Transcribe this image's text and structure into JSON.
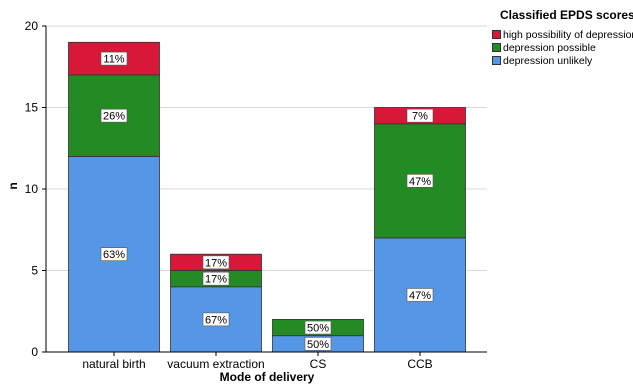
{
  "chart_data": {
    "type": "bar",
    "stacked": true,
    "xlabel": "Mode of delivery",
    "ylabel": "n",
    "ylim": [
      0,
      20
    ],
    "yticks": [
      0,
      5,
      10,
      15,
      20
    ],
    "grid": true,
    "legend_position": "right",
    "legend_title": "Classified EPDS scores",
    "categories": [
      "natural birth",
      "vacuum extraction",
      "CS",
      "CCB"
    ],
    "series": [
      {
        "name": "depression unlikely",
        "color": "#5596e6",
        "values": [
          12,
          4,
          1,
          7
        ],
        "labels": [
          "63%",
          "67%",
          "50%",
          "47%"
        ]
      },
      {
        "name": "depression possible",
        "color": "#248a24",
        "values": [
          5,
          1,
          1,
          7
        ],
        "labels": [
          "26%",
          "17%",
          "50%",
          "47%"
        ]
      },
      {
        "name": "high possibility of depression",
        "color": "#d81839",
        "values": [
          2,
          1,
          0,
          1
        ],
        "labels": [
          "11%",
          "17%",
          "",
          "7%"
        ]
      }
    ]
  }
}
